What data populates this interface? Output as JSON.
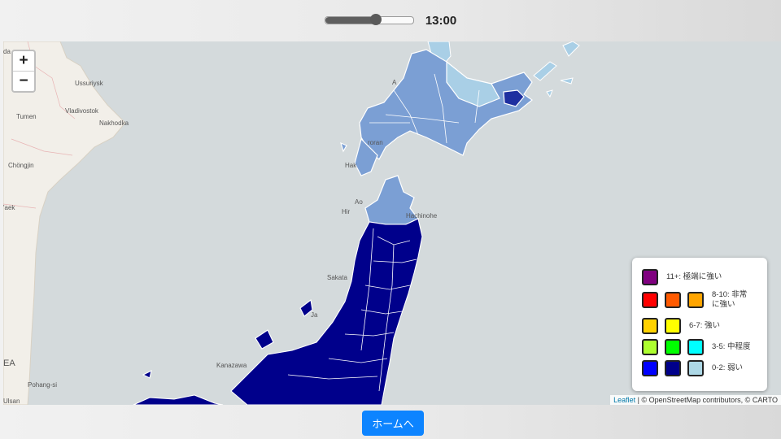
{
  "time_control": {
    "time_label": "13:00",
    "progress": 0.58
  },
  "map": {
    "cities": [
      "Ussuriysk",
      "Vladivostok",
      "Tumen",
      "Nakhodka",
      "Chöngjin",
      "Sakata",
      "Hachinohe",
      "Kanazawa",
      "Pohang-si",
      "Ulsan",
      "EA",
      "'aek",
      "da",
      "A",
      "roran",
      "Hak",
      "Ao",
      "Hir",
      "Ja"
    ],
    "zoom_in_label": "+",
    "zoom_out_label": "−",
    "attribution_leaflet": "Leaflet",
    "attribution_text": " | © OpenStreetMap contributors, © CARTO"
  },
  "legend": {
    "rows": [
      {
        "label": "11+: 極端に強い",
        "colors": [
          "#800080"
        ]
      },
      {
        "label": "8-10: 非常に強い",
        "colors": [
          "#ff0000",
          "#ff5a00",
          "#ffa500"
        ]
      },
      {
        "label": "6-7: 強い",
        "colors": [
          "#ffd200",
          "#ffff00"
        ]
      },
      {
        "label": "3-5: 中程度",
        "colors": [
          "#adff2f",
          "#00ff00",
          "#00ffff"
        ]
      },
      {
        "label": "0-2: 弱い",
        "colors": [
          "#0000ff",
          "#00008b",
          "#add8e6"
        ]
      }
    ]
  },
  "colors": {
    "tohoku": "#00008b",
    "hokkaido": "#7b9fd4",
    "hokkaido_light": "#a9cfe6",
    "sea": "#d4dadc",
    "land": "#f2efe9"
  },
  "home_button": {
    "label": "ホームへ"
  }
}
